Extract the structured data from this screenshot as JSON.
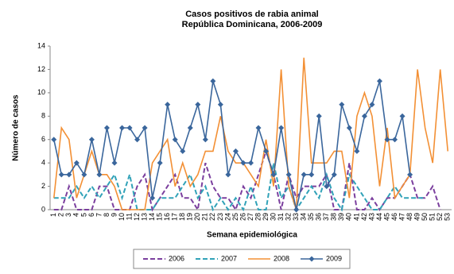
{
  "chart_data": {
    "type": "line",
    "title": "Casos positivos de rabia animal",
    "subtitle": "República Dominicana, 2006-2009",
    "x_label": "Semana epidemiológica",
    "y_label": "Número de casos",
    "categories": [
      "1",
      "2",
      "3",
      "4",
      "5",
      "6",
      "7",
      "8",
      "9",
      "10",
      "11",
      "12",
      "13",
      "14",
      "15",
      "16",
      "17",
      "18",
      "19",
      "20",
      "21",
      "22",
      "23",
      "24",
      "25",
      "26",
      "27",
      "28",
      "29",
      "30",
      "31",
      "32",
      "33",
      "34",
      "35",
      "36",
      "37",
      "38",
      "39",
      "40",
      "41",
      "42",
      "43",
      "44",
      "45",
      "46",
      "47",
      "48",
      "49",
      "50",
      "51",
      "52",
      "53"
    ],
    "series": [
      {
        "name": "2006",
        "color": "#7b3f9e",
        "line_style": "dashed",
        "values": [
          0,
          0,
          2,
          0,
          0,
          0,
          2,
          2,
          0,
          0,
          0,
          2,
          3,
          0,
          1,
          2,
          3,
          1,
          1,
          0,
          4,
          2,
          1,
          1,
          0,
          2,
          1,
          3,
          5,
          3,
          0,
          3,
          1,
          2,
          2,
          2,
          3,
          0,
          0,
          4,
          0,
          0,
          1,
          0,
          1,
          1,
          2,
          3,
          1,
          1,
          2,
          0,
          null
        ]
      },
      {
        "name": "2007",
        "color": "#31a2b8",
        "line_style": "dashed",
        "values": [
          1,
          1,
          1,
          2,
          1,
          2,
          1,
          2,
          3,
          1,
          3,
          0,
          0,
          0,
          1,
          1,
          1,
          2,
          3,
          1,
          2,
          0,
          1,
          0,
          1,
          0,
          2,
          0,
          0,
          4,
          1,
          2,
          0,
          1,
          2,
          1,
          3,
          1,
          0,
          3,
          2,
          1,
          0,
          0,
          1,
          2,
          1,
          1,
          1,
          1,
          null,
          null,
          null
        ]
      },
      {
        "name": "2008",
        "color": "#f39035",
        "line_style": "solid",
        "values": [
          1,
          7,
          6,
          1,
          3,
          5,
          3,
          3,
          2,
          0,
          0,
          0,
          0,
          4,
          5,
          6,
          2,
          4,
          2,
          3,
          5,
          5,
          8,
          5,
          4,
          4,
          3,
          2,
          6,
          2,
          12,
          2,
          0,
          13,
          4,
          4,
          4,
          5,
          5,
          1,
          8,
          10,
          8,
          2,
          7,
          1,
          2,
          3,
          12,
          7,
          4,
          12,
          5
        ]
      },
      {
        "name": "2009",
        "color": "#3a669c",
        "line_style": "solid",
        "marker": "diamond",
        "values": [
          6,
          3,
          3,
          4,
          3,
          6,
          3,
          7,
          4,
          7,
          7,
          6,
          7,
          1,
          4,
          9,
          6,
          5,
          7,
          9,
          6,
          11,
          9,
          3,
          5,
          4,
          4,
          7,
          5,
          3,
          7,
          3,
          0,
          3,
          3,
          8,
          2,
          3,
          9,
          7,
          5,
          8,
          9,
          11,
          6,
          6,
          8,
          3,
          null,
          null,
          null,
          null,
          null
        ]
      }
    ],
    "ylim": [
      0,
      14
    ],
    "yticks": [
      0,
      2,
      4,
      6,
      8,
      10,
      12,
      14
    ],
    "grid": false,
    "legend": "bottom"
  }
}
